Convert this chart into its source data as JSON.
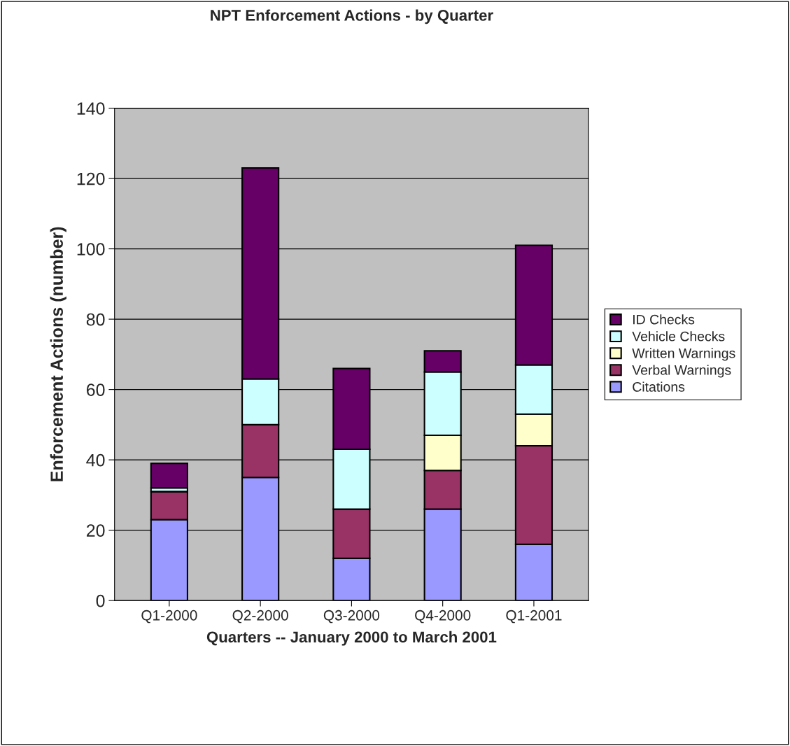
{
  "chart_data": {
    "type": "bar",
    "title": "NPT Enforcement Actions - by Quarter",
    "xlabel": "Quarters -- January 2000 to March 2001",
    "ylabel": "Enforcement Actions (number)",
    "categories": [
      "Q1-2000",
      "Q2-2000",
      "Q3-2000",
      "Q4-2000",
      "Q1-2001"
    ],
    "stacked": true,
    "series": [
      {
        "name": "Citations",
        "color": "#9999ff",
        "values": [
          23,
          35,
          12,
          26,
          16
        ]
      },
      {
        "name": "Verbal Warnings",
        "color": "#993366",
        "values": [
          8,
          15,
          14,
          11,
          28
        ]
      },
      {
        "name": "Written Warnings",
        "color": "#ffffcc",
        "values": [
          0,
          0,
          0,
          10,
          9
        ]
      },
      {
        "name": "Vehicle Checks",
        "color": "#ccffff",
        "values": [
          1,
          13,
          17,
          18,
          14
        ]
      },
      {
        "name": "ID Checks",
        "color": "#660066",
        "values": [
          7,
          60,
          23,
          6,
          34
        ]
      }
    ],
    "ylim": [
      0,
      140
    ],
    "yticks": [
      0,
      20,
      40,
      60,
      80,
      100,
      120,
      140
    ],
    "grid": "y",
    "legend": "right"
  }
}
